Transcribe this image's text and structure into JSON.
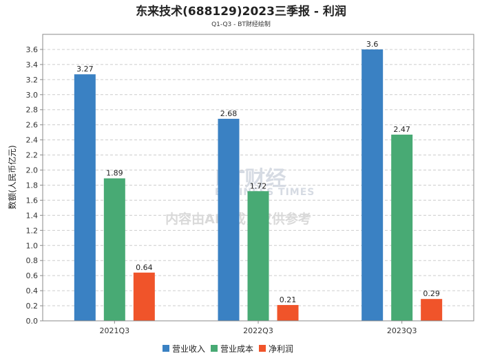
{
  "chart_data": {
    "type": "bar",
    "title": "东来技术(688129)2023三季报 - 利润",
    "subtitle": "Q1-Q3 - BT财经绘制",
    "ylabel": "数额(人民币亿元)",
    "xlabel": "",
    "categories": [
      "2021Q3",
      "2022Q3",
      "2023Q3"
    ],
    "ylim": [
      0,
      3.8
    ],
    "ytick_step": 0.2,
    "grid": true,
    "legend_position": "bottom",
    "series": [
      {
        "name": "营业收入",
        "color": "#3a81c3",
        "values": [
          3.27,
          2.68,
          3.6
        ]
      },
      {
        "name": "营业成本",
        "color": "#48aa74",
        "values": [
          1.89,
          1.72,
          2.47
        ]
      },
      {
        "name": "净利润",
        "color": "#f0542a",
        "values": [
          0.64,
          0.21,
          0.29
        ]
      }
    ]
  },
  "watermark": {
    "brand": "BT财经",
    "brand_sub": "BUSINESS TIMES",
    "notice": "内容由AI生成，仅供参考"
  }
}
